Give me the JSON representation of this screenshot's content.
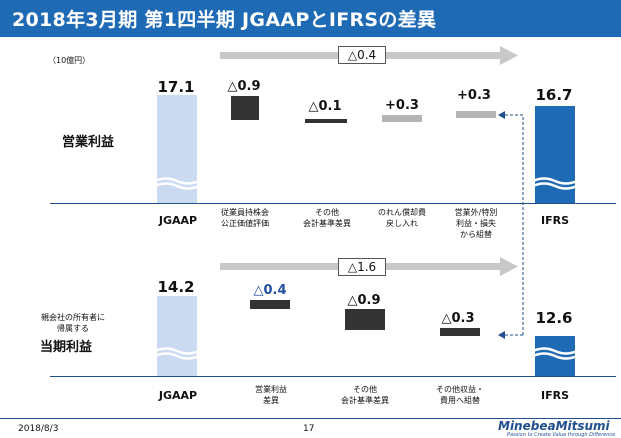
{
  "header": {
    "title": "2018年3月期 第1四半期 JGAAPとIFRSの差異"
  },
  "unit_label": "（10億円）",
  "colors": {
    "title_bg": "#1f6ab4",
    "ifrs_bar": "#1f6ab4",
    "jgaap_bar": "#c9daf1",
    "negative_bar": "#333333",
    "positive_bar": "#b5b5b5",
    "arrow": "#c8c8c8"
  },
  "operating": {
    "row_label": "営業利益",
    "total_change": "△0.4",
    "start": {
      "label": "JGAAP",
      "value": "17.1"
    },
    "end": {
      "label": "IFRS",
      "value": "16.7"
    },
    "steps": [
      {
        "label": "従業員持株会\n公正価値評価",
        "value": "△0.9"
      },
      {
        "label": "その他\n会計基準差異",
        "value": "△0.1"
      },
      {
        "label": "のれん償却費\n戻し入れ",
        "value": "+0.3"
      },
      {
        "label": "営業外/特別\n利益・損失\nから組替",
        "value": "+0.3"
      }
    ]
  },
  "net": {
    "row_label_small": "親会社の所有者に\n帰属する",
    "row_label": "当期利益",
    "total_change": "△1.6",
    "start": {
      "label": "JGAAP",
      "value": "14.2"
    },
    "end": {
      "label": "IFRS",
      "value": "12.6"
    },
    "steps": [
      {
        "label": "営業利益\n差異",
        "value": "△0.4"
      },
      {
        "label": "その他\n会計基準差異",
        "value": "△0.9"
      },
      {
        "label": "その他収益・\n費用へ組替",
        "value": "△0.3"
      }
    ]
  },
  "footer": {
    "date": "2018/8/3",
    "page": "17",
    "brand": "MinebeaMitsumi",
    "tagline": "Passion to Create Value through Difference"
  }
}
